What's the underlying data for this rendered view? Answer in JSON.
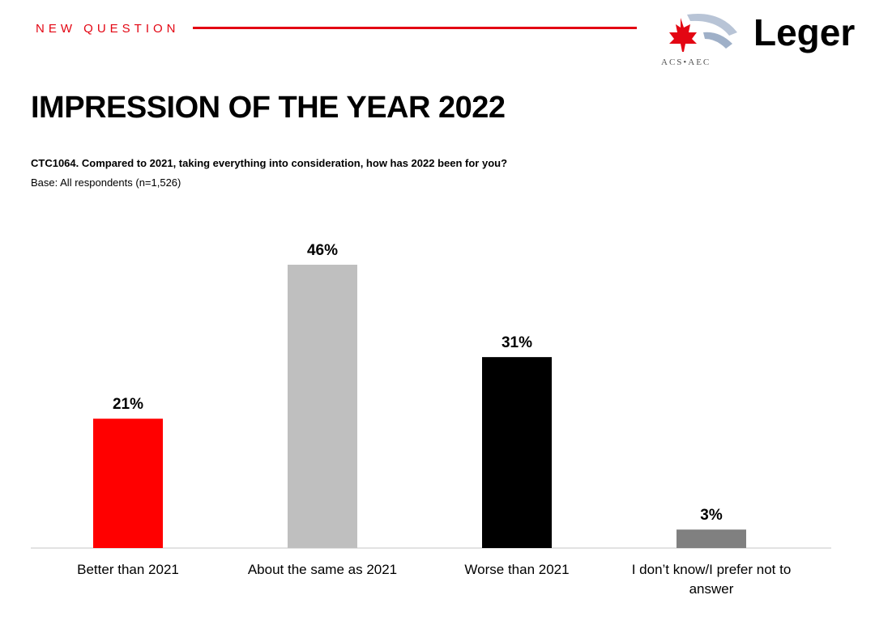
{
  "header": {
    "tag": "NEW QUESTION",
    "logo_acs_text": "ACS•AEC",
    "logo_leger_text": "Leger"
  },
  "title": "IMPRESSION OF THE YEAR 2022",
  "question": "CTC1064. Compared to 2021, taking everything into consideration, how has 2022 been for you?",
  "base": "Base: All respondents (n=1,526)",
  "colors": {
    "accent": "#e30613",
    "bar_better": "#ff0000",
    "bar_same": "#bfbfbf",
    "bar_worse": "#000000",
    "bar_dk": "#808080"
  },
  "chart_data": {
    "type": "bar",
    "categories": [
      "Better than 2021",
      "About the same as 2021",
      "Worse than 2021",
      "I don’t know/I prefer not to answer"
    ],
    "values": [
      21,
      46,
      31,
      3
    ],
    "data_labels": [
      "21%",
      "46%",
      "31%",
      "3%"
    ],
    "colors": [
      "#ff0000",
      "#bfbfbf",
      "#000000",
      "#808080"
    ],
    "ylim": [
      0,
      50
    ],
    "grid": false,
    "legend": "none"
  }
}
